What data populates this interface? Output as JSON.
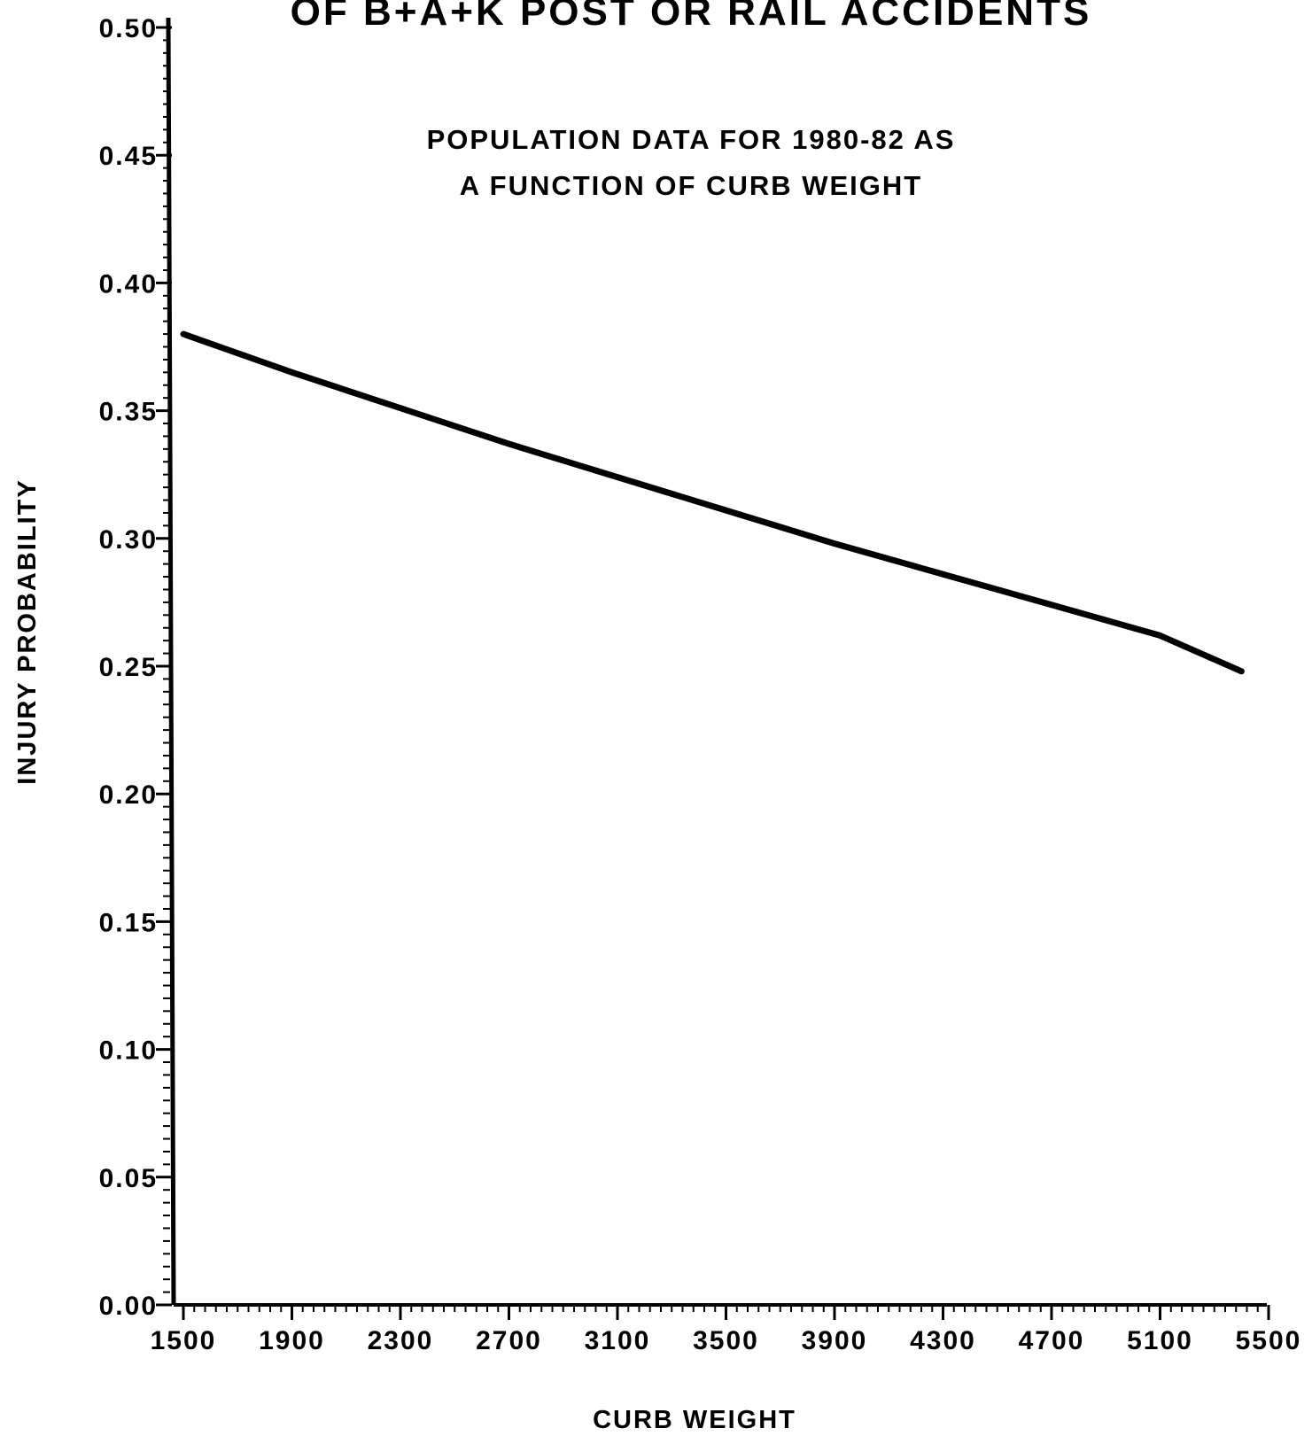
{
  "chart_data": {
    "type": "line",
    "title": "OF B+A+K POST OR RAIL ACCIDENTS",
    "subtitle_lines": [
      "POPULATION DATA FOR 1980-82 AS",
      "A FUNCTION OF CURB WEIGHT"
    ],
    "xlabel": "CURB WEIGHT",
    "ylabel": "INJURY PROBABILITY",
    "xlim": [
      1500,
      5500
    ],
    "ylim": [
      0.0,
      0.5
    ],
    "x_ticks": [
      "1500",
      "1900",
      "2300",
      "2700",
      "3100",
      "3500",
      "3900",
      "4300",
      "4700",
      "5100",
      "5500"
    ],
    "y_ticks": [
      "0.00",
      "0.05",
      "0.10",
      "0.15",
      "0.20",
      "0.25",
      "0.30",
      "0.35",
      "0.40",
      "0.45",
      "0.50"
    ],
    "grid": false,
    "series": [
      {
        "x": [
          1500,
          1900,
          2300,
          2700,
          3100,
          3500,
          3900,
          4300,
          4700,
          5100,
          5400
        ],
        "values": [
          0.38,
          0.365,
          0.351,
          0.337,
          0.324,
          0.311,
          0.298,
          0.286,
          0.274,
          0.262,
          0.248
        ]
      }
    ]
  }
}
